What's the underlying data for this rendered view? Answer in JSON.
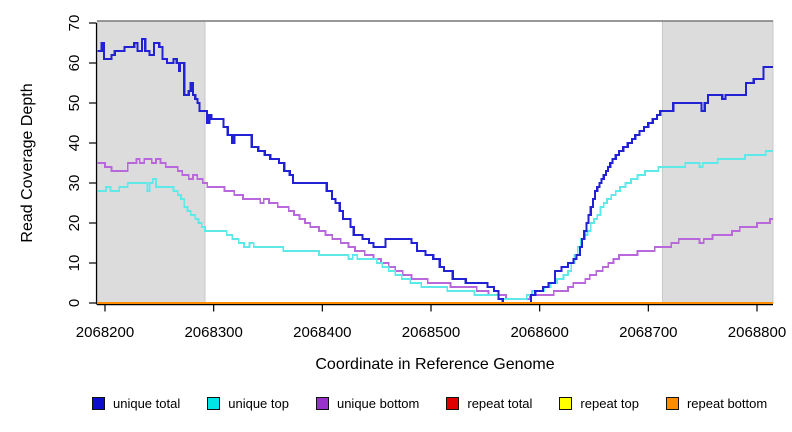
{
  "chart_data": {
    "type": "line",
    "subtype": "step-after",
    "title": "",
    "xlabel": "Coordinate in Reference Genome",
    "ylabel": "Read Coverage Depth",
    "xlim": [
      2068193,
      2068815
    ],
    "ylim": [
      0,
      70
    ],
    "x_ticks": [
      2068200,
      2068300,
      2068400,
      2068500,
      2068600,
      2068700,
      2068800
    ],
    "y_ticks": [
      0,
      10,
      20,
      30,
      40,
      50,
      60,
      70
    ],
    "grid": false,
    "legend_position": "bottom",
    "background_color": "#FFFFFF",
    "band_color": "#DCDCDC",
    "band_edge_color": "#8A8A8A",
    "axis_color": "#000000",
    "shaded_regions": [
      [
        2068193,
        2068292
      ],
      [
        2068713,
        2068815
      ]
    ],
    "series": [
      {
        "name": "unique total",
        "line_color": "#2222D4",
        "legend_color": "#0D0DCE",
        "points": [
          [
            2068193,
            63
          ],
          [
            2068197,
            65
          ],
          [
            2068199,
            61
          ],
          [
            2068206,
            62
          ],
          [
            2068209,
            63
          ],
          [
            2068218,
            64
          ],
          [
            2068227,
            65
          ],
          [
            2068230,
            63
          ],
          [
            2068234,
            66
          ],
          [
            2068237,
            63
          ],
          [
            2068241,
            62
          ],
          [
            2068245,
            65
          ],
          [
            2068250,
            64
          ],
          [
            2068253,
            61
          ],
          [
            2068257,
            60
          ],
          [
            2068263,
            61
          ],
          [
            2068266,
            60
          ],
          [
            2068268,
            58
          ],
          [
            2068269,
            60
          ],
          [
            2068273,
            52
          ],
          [
            2068277,
            53
          ],
          [
            2068279,
            55
          ],
          [
            2068281,
            52
          ],
          [
            2068283,
            51
          ],
          [
            2068285,
            50
          ],
          [
            2068287,
            48
          ],
          [
            2068292,
            48
          ],
          [
            2068294,
            45
          ],
          [
            2068296,
            47
          ],
          [
            2068298,
            46
          ],
          [
            2068309,
            44
          ],
          [
            2068313,
            42
          ],
          [
            2068317,
            40
          ],
          [
            2068319,
            42
          ],
          [
            2068335,
            39
          ],
          [
            2068341,
            38
          ],
          [
            2068347,
            37
          ],
          [
            2068352,
            36
          ],
          [
            2068360,
            35
          ],
          [
            2068365,
            33
          ],
          [
            2068370,
            32
          ],
          [
            2068373,
            30
          ],
          [
            2068404,
            28
          ],
          [
            2068409,
            26
          ],
          [
            2068412,
            25
          ],
          [
            2068416,
            23
          ],
          [
            2068419,
            21
          ],
          [
            2068426,
            19
          ],
          [
            2068429,
            17
          ],
          [
            2068437,
            16
          ],
          [
            2068443,
            15
          ],
          [
            2068447,
            14
          ],
          [
            2068458,
            16
          ],
          [
            2068476,
            16
          ],
          [
            2068482,
            15
          ],
          [
            2068487,
            13
          ],
          [
            2068495,
            12
          ],
          [
            2068502,
            11
          ],
          [
            2068508,
            9
          ],
          [
            2068512,
            8
          ],
          [
            2068520,
            6
          ],
          [
            2068532,
            5
          ],
          [
            2068552,
            4
          ],
          [
            2068558,
            3
          ],
          [
            2068562,
            1
          ],
          [
            2068566,
            0
          ],
          [
            2068590,
            0
          ],
          [
            2068592,
            2
          ],
          [
            2068596,
            3
          ],
          [
            2068603,
            4
          ],
          [
            2068608,
            5
          ],
          [
            2068614,
            8
          ],
          [
            2068620,
            9
          ],
          [
            2068626,
            10
          ],
          [
            2068631,
            11
          ],
          [
            2068634,
            12
          ],
          [
            2068637,
            14
          ],
          [
            2068639,
            16
          ],
          [
            2068641,
            18
          ],
          [
            2068643,
            20
          ],
          [
            2068645,
            22
          ],
          [
            2068647,
            24
          ],
          [
            2068649,
            26
          ],
          [
            2068651,
            28
          ],
          [
            2068653,
            29
          ],
          [
            2068655,
            30
          ],
          [
            2068657,
            31
          ],
          [
            2068659,
            32
          ],
          [
            2068661,
            33
          ],
          [
            2068663,
            34
          ],
          [
            2068665,
            35
          ],
          [
            2068667,
            36
          ],
          [
            2068670,
            37
          ],
          [
            2068673,
            38
          ],
          [
            2068677,
            39
          ],
          [
            2068681,
            40
          ],
          [
            2068685,
            41
          ],
          [
            2068688,
            42
          ],
          [
            2068692,
            43
          ],
          [
            2068696,
            44
          ],
          [
            2068700,
            45
          ],
          [
            2068704,
            46
          ],
          [
            2068708,
            47
          ],
          [
            2068711,
            48
          ],
          [
            2068723,
            50
          ],
          [
            2068749,
            48
          ],
          [
            2068752,
            50
          ],
          [
            2068755,
            52
          ],
          [
            2068768,
            51
          ],
          [
            2068771,
            52
          ],
          [
            2068790,
            55
          ],
          [
            2068797,
            56
          ],
          [
            2068806,
            59
          ],
          [
            2068814,
            59
          ]
        ]
      },
      {
        "name": "unique top",
        "line_color": "#5FE8E8",
        "legend_color": "#00E5E5",
        "points": [
          [
            2068193,
            28
          ],
          [
            2068201,
            29
          ],
          [
            2068205,
            28
          ],
          [
            2068213,
            29
          ],
          [
            2068221,
            30
          ],
          [
            2068236,
            30
          ],
          [
            2068239,
            28
          ],
          [
            2068241,
            30
          ],
          [
            2068244,
            31
          ],
          [
            2068247,
            29
          ],
          [
            2068258,
            29
          ],
          [
            2068263,
            28
          ],
          [
            2068267,
            27
          ],
          [
            2068270,
            26
          ],
          [
            2068273,
            24
          ],
          [
            2068276,
            23
          ],
          [
            2068279,
            22
          ],
          [
            2068283,
            21
          ],
          [
            2068286,
            20
          ],
          [
            2068289,
            19
          ],
          [
            2068292,
            18
          ],
          [
            2068308,
            18
          ],
          [
            2068312,
            17
          ],
          [
            2068317,
            16
          ],
          [
            2068323,
            15
          ],
          [
            2068328,
            14
          ],
          [
            2068333,
            15
          ],
          [
            2068337,
            14
          ],
          [
            2068359,
            14
          ],
          [
            2068364,
            13
          ],
          [
            2068392,
            13
          ],
          [
            2068397,
            12
          ],
          [
            2068419,
            12
          ],
          [
            2068424,
            11
          ],
          [
            2068428,
            12
          ],
          [
            2068432,
            11
          ],
          [
            2068445,
            11
          ],
          [
            2068450,
            10
          ],
          [
            2068455,
            9
          ],
          [
            2068461,
            8
          ],
          [
            2068467,
            7
          ],
          [
            2068473,
            6
          ],
          [
            2068481,
            5
          ],
          [
            2068491,
            4
          ],
          [
            2068510,
            4
          ],
          [
            2068515,
            3
          ],
          [
            2068540,
            2
          ],
          [
            2068562,
            1
          ],
          [
            2068585,
            1
          ],
          [
            2068588,
            2
          ],
          [
            2068593,
            3
          ],
          [
            2068604,
            4
          ],
          [
            2068610,
            5
          ],
          [
            2068616,
            6
          ],
          [
            2068622,
            7
          ],
          [
            2068626,
            8
          ],
          [
            2068629,
            10
          ],
          [
            2068632,
            12
          ],
          [
            2068635,
            14
          ],
          [
            2068638,
            16
          ],
          [
            2068641,
            17
          ],
          [
            2068644,
            18
          ],
          [
            2068647,
            20
          ],
          [
            2068650,
            21
          ],
          [
            2068653,
            22
          ],
          [
            2068656,
            24
          ],
          [
            2068659,
            25
          ],
          [
            2068662,
            26
          ],
          [
            2068666,
            27
          ],
          [
            2068670,
            28
          ],
          [
            2068674,
            29
          ],
          [
            2068679,
            30
          ],
          [
            2068684,
            31
          ],
          [
            2068690,
            32
          ],
          [
            2068697,
            33
          ],
          [
            2068709,
            34
          ],
          [
            2068734,
            35
          ],
          [
            2068747,
            34
          ],
          [
            2068750,
            35
          ],
          [
            2068764,
            36
          ],
          [
            2068789,
            37
          ],
          [
            2068808,
            38
          ],
          [
            2068814,
            38
          ]
        ]
      },
      {
        "name": "unique bottom",
        "line_color": "#B968DC",
        "legend_color": "#9932CC",
        "points": [
          [
            2068193,
            35
          ],
          [
            2068200,
            34
          ],
          [
            2068206,
            33
          ],
          [
            2068217,
            33
          ],
          [
            2068221,
            35
          ],
          [
            2068229,
            36
          ],
          [
            2068232,
            35
          ],
          [
            2068236,
            36
          ],
          [
            2068243,
            35
          ],
          [
            2068247,
            36
          ],
          [
            2068251,
            35
          ],
          [
            2068256,
            34
          ],
          [
            2068262,
            34
          ],
          [
            2068267,
            33
          ],
          [
            2068271,
            32
          ],
          [
            2068277,
            31
          ],
          [
            2068281,
            32
          ],
          [
            2068285,
            31
          ],
          [
            2068290,
            30
          ],
          [
            2068294,
            29
          ],
          [
            2068305,
            29
          ],
          [
            2068310,
            28
          ],
          [
            2068319,
            27
          ],
          [
            2068327,
            26
          ],
          [
            2068340,
            26
          ],
          [
            2068343,
            25
          ],
          [
            2068346,
            26
          ],
          [
            2068351,
            25
          ],
          [
            2068359,
            24
          ],
          [
            2068369,
            23
          ],
          [
            2068374,
            22
          ],
          [
            2068379,
            21
          ],
          [
            2068384,
            20
          ],
          [
            2068389,
            19
          ],
          [
            2068397,
            18
          ],
          [
            2068403,
            17
          ],
          [
            2068409,
            16
          ],
          [
            2068417,
            15
          ],
          [
            2068424,
            14
          ],
          [
            2068430,
            13
          ],
          [
            2068439,
            12
          ],
          [
            2068447,
            11
          ],
          [
            2068454,
            10
          ],
          [
            2068461,
            9
          ],
          [
            2068467,
            8
          ],
          [
            2068474,
            7
          ],
          [
            2068482,
            6
          ],
          [
            2068497,
            5
          ],
          [
            2068518,
            4
          ],
          [
            2068542,
            3
          ],
          [
            2068553,
            2
          ],
          [
            2068569,
            1
          ],
          [
            2068587,
            1
          ],
          [
            2068591,
            2
          ],
          [
            2068609,
            2
          ],
          [
            2068613,
            3
          ],
          [
            2068623,
            3
          ],
          [
            2068626,
            4
          ],
          [
            2068631,
            5
          ],
          [
            2068639,
            5
          ],
          [
            2068642,
            6
          ],
          [
            2068646,
            7
          ],
          [
            2068652,
            8
          ],
          [
            2068658,
            9
          ],
          [
            2068663,
            10
          ],
          [
            2068668,
            11
          ],
          [
            2068673,
            12
          ],
          [
            2068686,
            12
          ],
          [
            2068690,
            13
          ],
          [
            2068703,
            13
          ],
          [
            2068706,
            14
          ],
          [
            2068721,
            15
          ],
          [
            2068728,
            16
          ],
          [
            2068744,
            16
          ],
          [
            2068747,
            15
          ],
          [
            2068751,
            16
          ],
          [
            2068759,
            17
          ],
          [
            2068771,
            17
          ],
          [
            2068777,
            18
          ],
          [
            2068784,
            19
          ],
          [
            2068797,
            19
          ],
          [
            2068800,
            20
          ],
          [
            2068808,
            20
          ],
          [
            2068812,
            21
          ],
          [
            2068814,
            21
          ]
        ]
      },
      {
        "name": "repeat total",
        "line_color": "#DF0000",
        "legend_color": "#DF0000",
        "points": [
          [
            2068193,
            0
          ],
          [
            2068814,
            0
          ]
        ]
      },
      {
        "name": "repeat top",
        "line_color": "#FFFF00",
        "legend_color": "#FFFF00",
        "points": [
          [
            2068193,
            0
          ],
          [
            2068814,
            0
          ]
        ]
      },
      {
        "name": "repeat bottom",
        "line_color": "#FF8C00",
        "legend_color": "#FF8C00",
        "points": [
          [
            2068193,
            0
          ],
          [
            2068814,
            0
          ]
        ]
      }
    ]
  }
}
